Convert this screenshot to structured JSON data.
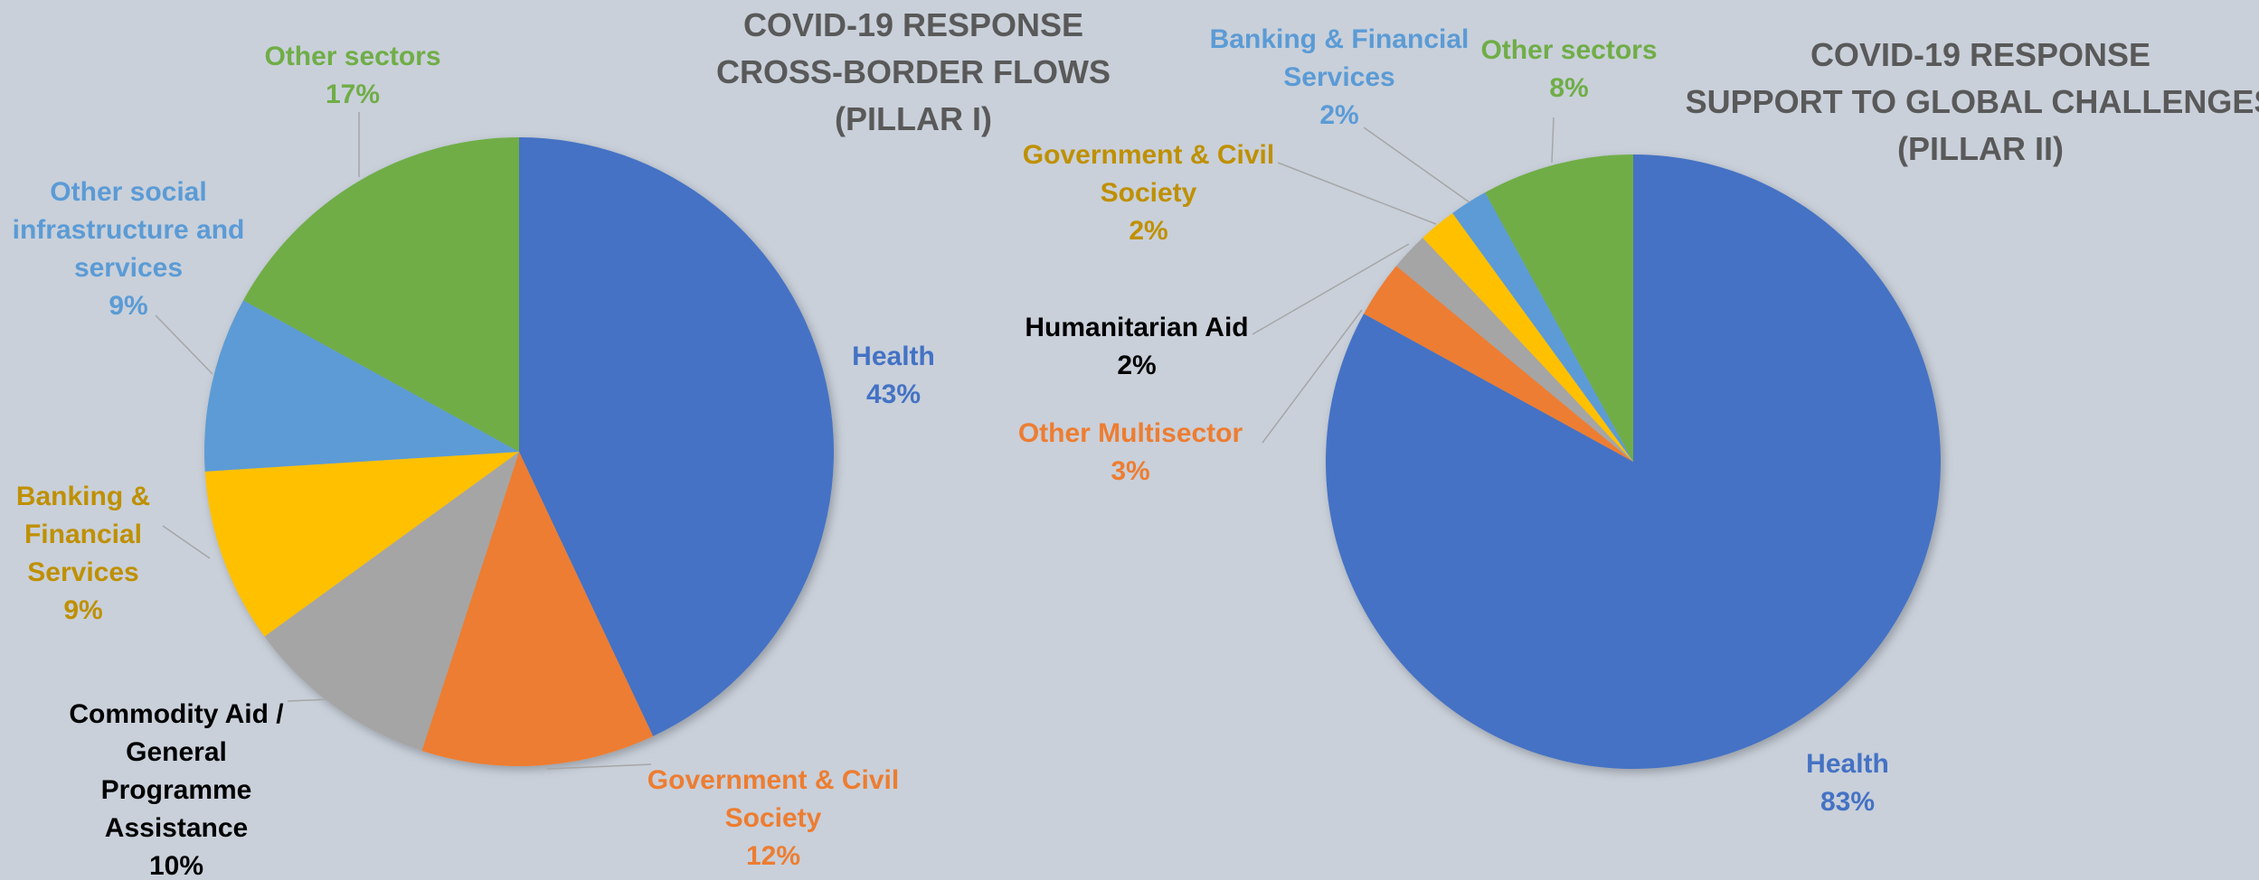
{
  "chart_data": [
    {
      "type": "pie",
      "title_lines": [
        "COVID-19 RESPONSE",
        "CROSS-BORDER FLOWS",
        "(PILLAR I)"
      ],
      "slices": [
        {
          "label_lines": [
            "Health"
          ],
          "value": 43,
          "value_label": "43%",
          "color": "#4472c4",
          "label_color": "#4472c4"
        },
        {
          "label_lines": [
            "Government & Civil",
            "Society"
          ],
          "value": 12,
          "value_label": "12%",
          "color": "#ed7d31",
          "label_color": "#ed7d31"
        },
        {
          "label_lines": [
            "Commodity Aid /",
            "General",
            "Programme",
            "Assistance"
          ],
          "value": 10,
          "value_label": "10%",
          "color": "#a5a5a5",
          "label_color": "#000000"
        },
        {
          "label_lines": [
            "Banking &",
            "Financial",
            "Services"
          ],
          "value": 9,
          "value_label": "9%",
          "color": "#ffc000",
          "label_color": "#bf9000"
        },
        {
          "label_lines": [
            "Other social",
            "infrastructure and",
            "services"
          ],
          "value": 9,
          "value_label": "9%",
          "color": "#5b9bd5",
          "label_color": "#5b9bd5"
        },
        {
          "label_lines": [
            "Other sectors"
          ],
          "value": 17,
          "value_label": "17%",
          "color": "#70ad47",
          "label_color": "#70ad47"
        }
      ]
    },
    {
      "type": "pie",
      "title_lines": [
        "COVID-19 RESPONSE",
        "SUPPORT TO GLOBAL CHALLENGES",
        "(PILLAR II)"
      ],
      "slices": [
        {
          "label_lines": [
            "Health"
          ],
          "value": 83,
          "value_label": "83%",
          "color": "#4472c4",
          "label_color": "#4472c4"
        },
        {
          "label_lines": [
            "Other Multisector"
          ],
          "value": 3,
          "value_label": "3%",
          "color": "#ed7d31",
          "label_color": "#ed7d31"
        },
        {
          "label_lines": [
            "Humanitarian Aid"
          ],
          "value": 2,
          "value_label": "2%",
          "color": "#a5a5a5",
          "label_color": "#000000"
        },
        {
          "label_lines": [
            "Government & Civil",
            "Society"
          ],
          "value": 2,
          "value_label": "2%",
          "color": "#ffc000",
          "label_color": "#bf9000"
        },
        {
          "label_lines": [
            "Banking & Financial",
            "Services"
          ],
          "value": 2,
          "value_label": "2%",
          "color": "#5b9bd5",
          "label_color": "#5b9bd5"
        },
        {
          "label_lines": [
            "Other sectors"
          ],
          "value": 8,
          "value_label": "8%",
          "color": "#70ad47",
          "label_color": "#70ad47"
        }
      ]
    }
  ]
}
